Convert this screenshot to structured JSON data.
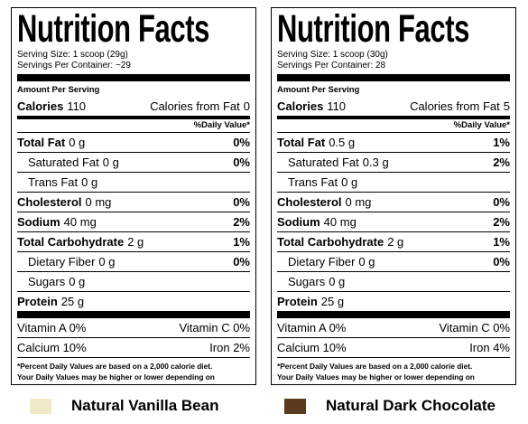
{
  "labels": [
    {
      "title": "Nutrition Facts",
      "serving_size": "Serving Size: 1 scoop (29g)",
      "servings_per_container": "Servings Per Container: ~29",
      "amount_per_serving": "Amount Per Serving",
      "calories": {
        "label": "Calories",
        "value": "110"
      },
      "calories_from_fat": {
        "label": "Calories from Fat",
        "value": "0"
      },
      "daily_value_header": "%Daily Value*",
      "nutrients": [
        {
          "name": "Total Fat",
          "amount": "0 g",
          "dv": "0%",
          "sub": [
            {
              "name": "Saturated Fat",
              "amount": "0 g",
              "dv": "0%"
            },
            {
              "name": "Trans Fat",
              "amount": "0 g"
            }
          ]
        },
        {
          "name": "Cholesterol",
          "amount": "0 mg",
          "dv": "0%"
        },
        {
          "name": "Sodium",
          "amount": "40 mg",
          "dv": "2%"
        },
        {
          "name": "Total Carbohydrate",
          "amount": "2 g",
          "dv": "1%",
          "sub": [
            {
              "name": "Dietary Fiber",
              "amount": "0 g",
              "dv": "0%"
            },
            {
              "name": "Sugars",
              "amount": "0 g"
            }
          ]
        },
        {
          "name": "Protein",
          "amount": "25 g"
        }
      ],
      "vitamins": [
        [
          "Vitamin A 0%",
          "Vitamin C 0%"
        ],
        [
          "Calcium 10%",
          "Iron 2%"
        ]
      ],
      "footnote": [
        "*Percent Daily Values are based on a 2,000 calorie diet.",
        "Your Daily Values may be higher or lower depending on",
        "you calorie needs."
      ]
    },
    {
      "title": "Nutrition Facts",
      "serving_size": "Serving Size: 1 scoop (30g)",
      "servings_per_container": "Servings Per Container: 28",
      "amount_per_serving": "Amount Per Serving",
      "calories": {
        "label": "Calories",
        "value": "110"
      },
      "calories_from_fat": {
        "label": "Calories from Fat",
        "value": "5"
      },
      "daily_value_header": "%Daily Value*",
      "nutrients": [
        {
          "name": "Total Fat",
          "amount": "0.5 g",
          "dv": "1%",
          "sub": [
            {
              "name": "Saturated Fat",
              "amount": "0.3 g",
              "dv": "2%"
            },
            {
              "name": "Trans Fat",
              "amount": "0 g"
            }
          ]
        },
        {
          "name": "Cholesterol",
          "amount": "0 mg",
          "dv": "0%"
        },
        {
          "name": "Sodium",
          "amount": "40 mg",
          "dv": "2%"
        },
        {
          "name": "Total Carbohydrate",
          "amount": "2 g",
          "dv": "1%",
          "sub": [
            {
              "name": "Dietary Fiber",
              "amount": "0 g",
              "dv": "0%"
            },
            {
              "name": "Sugars",
              "amount": "0 g"
            }
          ]
        },
        {
          "name": "Protein",
          "amount": "25 g"
        }
      ],
      "vitamins": [
        [
          "Vitamin A 0%",
          "Vitamin C 0%"
        ],
        [
          "Calcium 10%",
          "Iron 4%"
        ]
      ],
      "footnote": [
        "*Percent Daily Values are based on a 2,000 calorie diet.",
        "Your Daily Values may be higher or lower depending on",
        "you calorie needs."
      ]
    }
  ],
  "legend": [
    {
      "name": "Natural Vanilla Bean",
      "color": "#efe9c7"
    },
    {
      "name": "Natural Dark Chocolate",
      "color": "#5a3b1f"
    }
  ]
}
